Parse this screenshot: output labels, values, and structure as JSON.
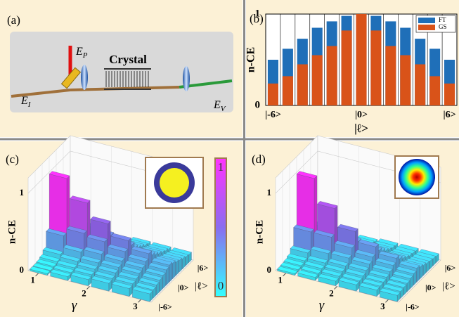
{
  "panel_labels": [
    "(a)",
    "(b)",
    "(c)",
    "(d)"
  ],
  "diagram": {
    "crystal": "Crystal",
    "beams": [
      {
        "symbol": "E",
        "subscript": "P"
      },
      {
        "symbol": "E",
        "subscript": "I"
      },
      {
        "symbol": "E",
        "subscript": "V"
      }
    ]
  },
  "chart_data": [
    {
      "type": "bar",
      "ylabel": "n-CE",
      "xlabel": "|ℓ>",
      "categories": [
        "|-6>",
        null,
        null,
        null,
        null,
        null,
        "|0>",
        null,
        null,
        null,
        null,
        null,
        "|6>"
      ],
      "series": [
        {
          "name": "FT",
          "color": "#1f6fb8",
          "values": [
            0.5,
            0.62,
            0.73,
            0.85,
            0.92,
            0.98,
            1,
            0.98,
            0.92,
            0.85,
            0.73,
            0.62,
            0.5
          ]
        },
        {
          "name": "GS",
          "color": "#d95319",
          "values": [
            0.24,
            0.32,
            0.45,
            0.55,
            0.65,
            0.82,
            1,
            0.82,
            0.65,
            0.55,
            0.45,
            0.32,
            0.24
          ]
        }
      ],
      "ylim": [
        0,
        1
      ],
      "yticks": [
        0,
        1
      ],
      "grid": true,
      "legend": "top-right"
    },
    {
      "type": "bar3d",
      "zlabel": "n-CE",
      "xlabel": "|ℓ>",
      "ylabel": "γ",
      "categories": [
        "|-6>",
        null,
        null,
        null,
        null,
        null,
        "|0>",
        null,
        null,
        null,
        null,
        null,
        "|6>"
      ],
      "y": [
        1.0,
        1.4,
        1.8,
        2.2,
        2.6,
        3.0
      ],
      "ylim": [
        0.8,
        3.2
      ],
      "yticks": [
        1,
        2,
        3
      ],
      "zlim": [
        0,
        1
      ],
      "zticks": [
        0,
        1
      ],
      "colormap": [
        "#33ffff",
        "#8a6cf0",
        "#ff33ff"
      ],
      "colorbar_ticks": [
        0,
        1
      ],
      "values": [
        [
          0.02,
          0.02,
          0.03,
          0.05,
          0.1,
          0.3,
          1.0,
          0.3,
          0.1,
          0.05,
          0.03,
          0.02,
          0.02
        ],
        [
          0.05,
          0.06,
          0.08,
          0.12,
          0.2,
          0.4,
          0.75,
          0.4,
          0.2,
          0.12,
          0.08,
          0.06,
          0.05
        ],
        [
          0.08,
          0.1,
          0.13,
          0.17,
          0.24,
          0.36,
          0.55,
          0.36,
          0.24,
          0.17,
          0.13,
          0.1,
          0.08
        ],
        [
          0.1,
          0.12,
          0.15,
          0.18,
          0.22,
          0.3,
          0.4,
          0.3,
          0.22,
          0.18,
          0.15,
          0.12,
          0.1
        ],
        [
          0.1,
          0.12,
          0.14,
          0.17,
          0.2,
          0.24,
          0.3,
          0.24,
          0.2,
          0.17,
          0.14,
          0.12,
          0.1
        ],
        [
          0.1,
          0.11,
          0.13,
          0.15,
          0.17,
          0.2,
          0.22,
          0.2,
          0.17,
          0.15,
          0.13,
          0.11,
          0.1
        ]
      ]
    },
    {
      "type": "bar3d",
      "zlabel": "n-CE",
      "xlabel": "|ℓ>",
      "ylabel": "γ",
      "categories": [
        "|-6>",
        null,
        null,
        null,
        null,
        null,
        "|0>",
        null,
        null,
        null,
        null,
        null,
        "|6>"
      ],
      "y": [
        1.0,
        1.4,
        1.8,
        2.2,
        2.6,
        3.0
      ],
      "ylim": [
        0.8,
        3.2
      ],
      "yticks": [
        1,
        2,
        3
      ],
      "zlim": [
        0,
        1
      ],
      "zticks": [
        0,
        1
      ],
      "colormap": [
        "#33ffff",
        "#8a6cf0",
        "#ff33ff"
      ],
      "values": [
        [
          0.02,
          0.03,
          0.04,
          0.06,
          0.12,
          0.35,
          1.0,
          0.35,
          0.12,
          0.06,
          0.04,
          0.03,
          0.02
        ],
        [
          0.04,
          0.05,
          0.07,
          0.1,
          0.18,
          0.35,
          0.68,
          0.35,
          0.18,
          0.1,
          0.07,
          0.05,
          0.04
        ],
        [
          0.06,
          0.08,
          0.1,
          0.13,
          0.19,
          0.28,
          0.45,
          0.28,
          0.19,
          0.13,
          0.1,
          0.08,
          0.06
        ],
        [
          0.08,
          0.09,
          0.11,
          0.14,
          0.18,
          0.23,
          0.32,
          0.23,
          0.18,
          0.14,
          0.11,
          0.09,
          0.08
        ],
        [
          0.08,
          0.09,
          0.1,
          0.12,
          0.15,
          0.19,
          0.24,
          0.19,
          0.15,
          0.12,
          0.1,
          0.09,
          0.08
        ],
        [
          0.08,
          0.09,
          0.1,
          0.11,
          0.13,
          0.15,
          0.18,
          0.15,
          0.13,
          0.11,
          0.1,
          0.09,
          0.08
        ]
      ]
    }
  ]
}
